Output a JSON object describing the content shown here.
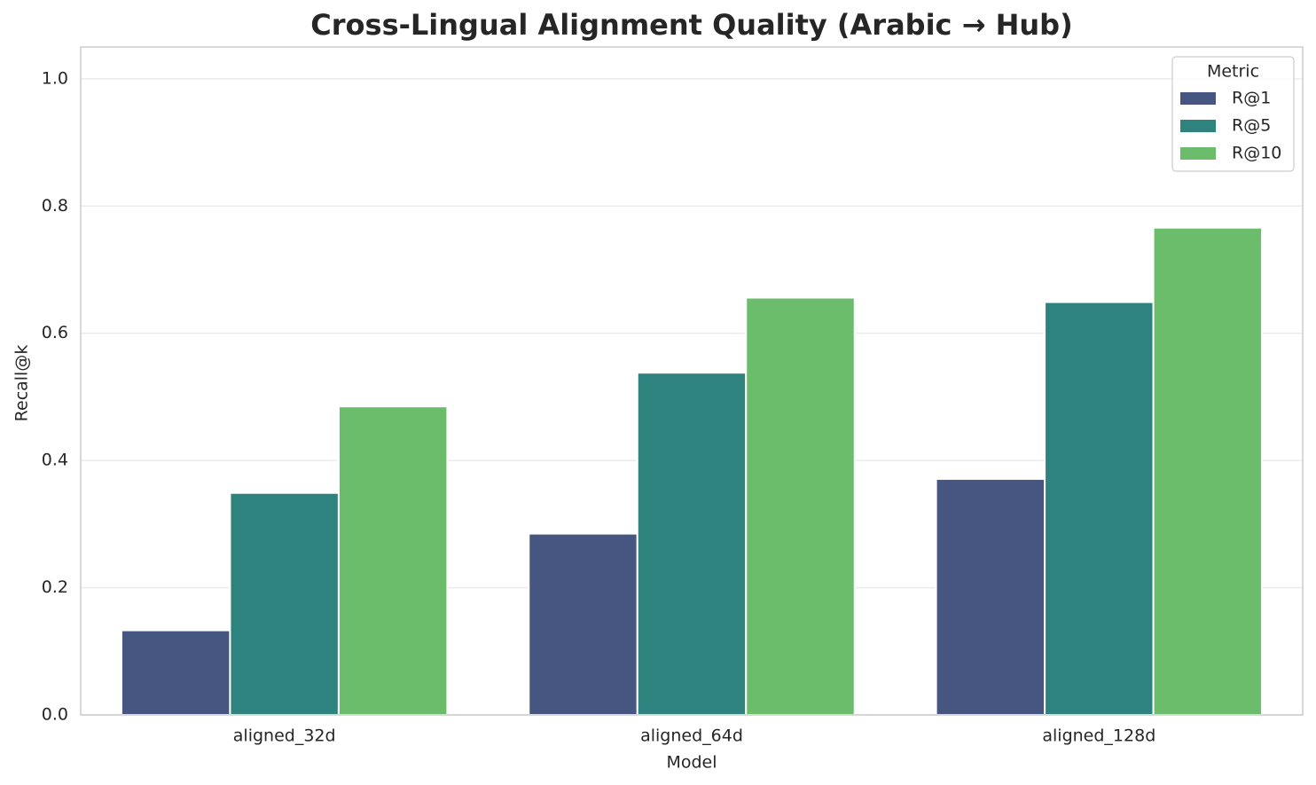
{
  "chart_data": {
    "type": "bar",
    "title": "Cross-Lingual Alignment Quality (Arabic → Hub)",
    "x_label": "Model",
    "y_label": "Recall@k",
    "categories": [
      "aligned_32d",
      "aligned_64d",
      "aligned_128d"
    ],
    "series": [
      {
        "name": "R@1",
        "color": "#465680",
        "values": [
          0.133,
          0.285,
          0.371
        ]
      },
      {
        "name": "R@5",
        "color": "#2e837e",
        "values": [
          0.349,
          0.538,
          0.649
        ]
      },
      {
        "name": "R@10",
        "color": "#6bbd6b",
        "values": [
          0.485,
          0.656,
          0.766
        ]
      }
    ],
    "ylim": [
      0,
      1.05
    ],
    "yticks": [
      {
        "value": 0,
        "label": "0.0"
      },
      0.2,
      0.4,
      0.6,
      0.8,
      {
        "value": 1,
        "label": "1.0"
      }
    ],
    "grid": true,
    "legend_title": "Metric",
    "legend_position": "upper-right"
  }
}
